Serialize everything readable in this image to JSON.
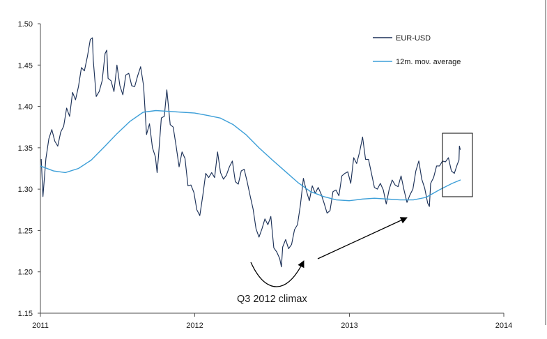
{
  "chart_data": {
    "type": "line",
    "x_scale": "date",
    "xlim": [
      "2011-01-01",
      "2014-01-01"
    ],
    "ylim": [
      1.15,
      1.5
    ],
    "x_ticks": [
      "2011",
      "2012",
      "2013",
      "2014"
    ],
    "y_ticks": [
      "1.15",
      "1.20",
      "1.25",
      "1.30",
      "1.35",
      "1.40",
      "1.45",
      "1.50"
    ],
    "grid": false,
    "legend_position": "top-right",
    "series": [
      {
        "name": "EUR-USD",
        "color": "#1c3158",
        "x": [
          "2011-01-03",
          "2011-01-07",
          "2011-01-14",
          "2011-01-21",
          "2011-01-28",
          "2011-02-04",
          "2011-02-11",
          "2011-02-18",
          "2011-02-25",
          "2011-03-04",
          "2011-03-11",
          "2011-03-18",
          "2011-03-25",
          "2011-04-01",
          "2011-04-08",
          "2011-04-15",
          "2011-04-22",
          "2011-04-29",
          "2011-05-04",
          "2011-05-06",
          "2011-05-13",
          "2011-05-20",
          "2011-05-27",
          "2011-06-03",
          "2011-06-07",
          "2011-06-10",
          "2011-06-17",
          "2011-06-24",
          "2011-07-01",
          "2011-07-08",
          "2011-07-15",
          "2011-07-22",
          "2011-07-29",
          "2011-08-05",
          "2011-08-12",
          "2011-08-19",
          "2011-08-26",
          "2011-09-02",
          "2011-09-09",
          "2011-09-16",
          "2011-09-23",
          "2011-09-30",
          "2011-10-04",
          "2011-10-07",
          "2011-10-14",
          "2011-10-21",
          "2011-10-27",
          "2011-11-04",
          "2011-11-11",
          "2011-11-18",
          "2011-11-25",
          "2011-12-02",
          "2011-12-09",
          "2011-12-16",
          "2011-12-23",
          "2011-12-30",
          "2012-01-06",
          "2012-01-13",
          "2012-01-20",
          "2012-01-27",
          "2012-02-03",
          "2012-02-10",
          "2012-02-17",
          "2012-02-24",
          "2012-03-02",
          "2012-03-09",
          "2012-03-16",
          "2012-03-23",
          "2012-03-30",
          "2012-04-06",
          "2012-04-13",
          "2012-04-20",
          "2012-04-27",
          "2012-05-04",
          "2012-05-11",
          "2012-05-18",
          "2012-05-25",
          "2012-06-01",
          "2012-06-08",
          "2012-06-15",
          "2012-06-22",
          "2012-06-29",
          "2012-07-06",
          "2012-07-13",
          "2012-07-20",
          "2012-07-24",
          "2012-07-27",
          "2012-08-03",
          "2012-08-10",
          "2012-08-17",
          "2012-08-24",
          "2012-08-31",
          "2012-09-07",
          "2012-09-14",
          "2012-09-21",
          "2012-09-28",
          "2012-10-05",
          "2012-10-12",
          "2012-10-19",
          "2012-10-26",
          "2012-11-02",
          "2012-11-09",
          "2012-11-16",
          "2012-11-23",
          "2012-11-30",
          "2012-12-07",
          "2012-12-14",
          "2012-12-21",
          "2012-12-28",
          "2013-01-04",
          "2013-01-11",
          "2013-01-18",
          "2013-01-25",
          "2013-02-01",
          "2013-02-08",
          "2013-02-15",
          "2013-02-22",
          "2013-03-01",
          "2013-03-08",
          "2013-03-15",
          "2013-03-22",
          "2013-03-29",
          "2013-04-05",
          "2013-04-12",
          "2013-04-19",
          "2013-04-26",
          "2013-05-03",
          "2013-05-10",
          "2013-05-17",
          "2013-05-24",
          "2013-05-31",
          "2013-06-07",
          "2013-06-14",
          "2013-06-21",
          "2013-06-28",
          "2013-07-05",
          "2013-07-09",
          "2013-07-12",
          "2013-07-19",
          "2013-07-26",
          "2013-08-02",
          "2013-08-09",
          "2013-08-16",
          "2013-08-23",
          "2013-08-30",
          "2013-09-06",
          "2013-09-13",
          "2013-09-17",
          "2013-09-18",
          "2013-09-20"
        ],
        "y": [
          1.336,
          1.291,
          1.337,
          1.361,
          1.372,
          1.358,
          1.352,
          1.369,
          1.376,
          1.398,
          1.388,
          1.417,
          1.408,
          1.424,
          1.447,
          1.443,
          1.46,
          1.481,
          1.483,
          1.456,
          1.412,
          1.418,
          1.431,
          1.464,
          1.468,
          1.434,
          1.431,
          1.418,
          1.45,
          1.425,
          1.414,
          1.438,
          1.44,
          1.425,
          1.424,
          1.437,
          1.448,
          1.425,
          1.366,
          1.379,
          1.35,
          1.339,
          1.32,
          1.338,
          1.386,
          1.388,
          1.42,
          1.378,
          1.375,
          1.352,
          1.327,
          1.345,
          1.337,
          1.304,
          1.305,
          1.296,
          1.275,
          1.268,
          1.292,
          1.319,
          1.314,
          1.32,
          1.314,
          1.345,
          1.32,
          1.312,
          1.317,
          1.327,
          1.334,
          1.309,
          1.306,
          1.322,
          1.324,
          1.309,
          1.292,
          1.276,
          1.252,
          1.242,
          1.252,
          1.264,
          1.257,
          1.267,
          1.229,
          1.224,
          1.216,
          1.206,
          1.23,
          1.239,
          1.228,
          1.233,
          1.251,
          1.257,
          1.281,
          1.313,
          1.298,
          1.286,
          1.304,
          1.295,
          1.302,
          1.294,
          1.283,
          1.271,
          1.274,
          1.297,
          1.299,
          1.292,
          1.316,
          1.319,
          1.321,
          1.307,
          1.338,
          1.331,
          1.345,
          1.363,
          1.336,
          1.336,
          1.319,
          1.302,
          1.3,
          1.307,
          1.299,
          1.282,
          1.3,
          1.311,
          1.305,
          1.303,
          1.316,
          1.299,
          1.284,
          1.293,
          1.3,
          1.322,
          1.334,
          1.312,
          1.301,
          1.283,
          1.279,
          1.307,
          1.314,
          1.328,
          1.328,
          1.334,
          1.333,
          1.338,
          1.322,
          1.319,
          1.33,
          1.335,
          1.352,
          1.348
        ]
      },
      {
        "name": "12m. mov. average",
        "color": "#3d9fd8",
        "x": [
          "2011-01-01",
          "2011-02-01",
          "2011-03-01",
          "2011-04-01",
          "2011-05-01",
          "2011-06-01",
          "2011-07-01",
          "2011-08-01",
          "2011-09-01",
          "2011-10-01",
          "2011-11-01",
          "2011-12-01",
          "2012-01-01",
          "2012-02-01",
          "2012-03-01",
          "2012-04-01",
          "2012-05-01",
          "2012-06-01",
          "2012-07-01",
          "2012-08-01",
          "2012-09-01",
          "2012-10-01",
          "2012-11-01",
          "2012-12-01",
          "2013-01-01",
          "2013-02-01",
          "2013-03-01",
          "2013-04-01",
          "2013-05-01",
          "2013-06-01",
          "2013-07-01",
          "2013-08-01",
          "2013-09-01",
          "2013-09-20"
        ],
        "y": [
          1.328,
          1.322,
          1.32,
          1.325,
          1.335,
          1.351,
          1.367,
          1.382,
          1.393,
          1.395,
          1.394,
          1.393,
          1.392,
          1.389,
          1.386,
          1.378,
          1.366,
          1.35,
          1.336,
          1.322,
          1.308,
          1.297,
          1.291,
          1.287,
          1.286,
          1.288,
          1.289,
          1.288,
          1.287,
          1.287,
          1.29,
          1.299,
          1.307,
          1.311
        ]
      }
    ],
    "annotations": [
      {
        "text": "Q3 2012 climax"
      }
    ]
  }
}
